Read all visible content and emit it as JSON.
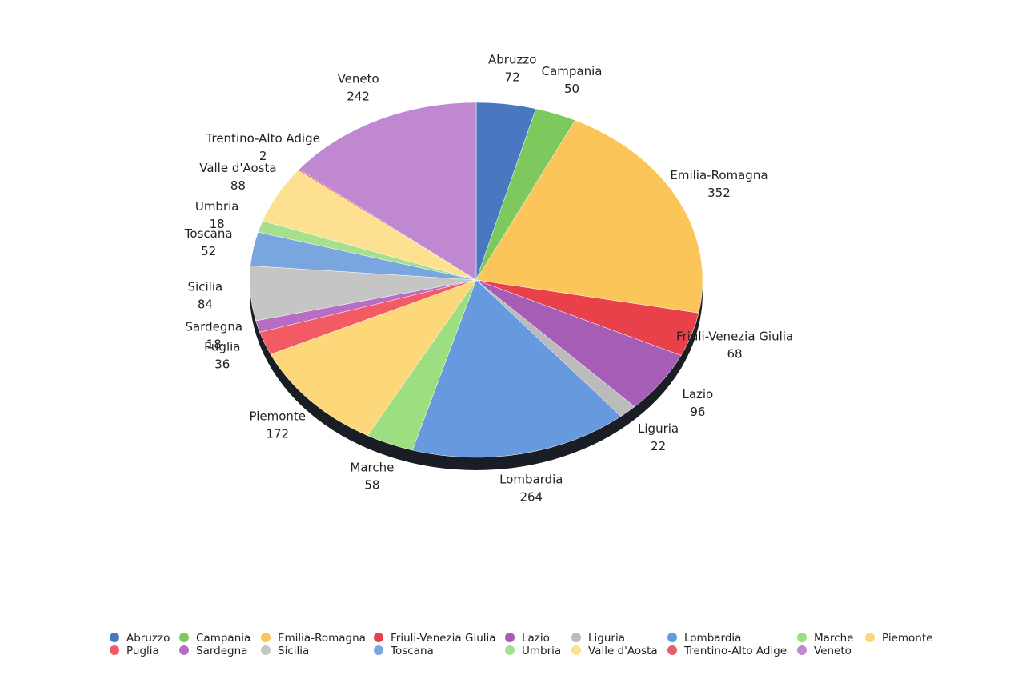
{
  "chart_data": {
    "type": "pie",
    "categories": [
      "Abruzzo",
      "Campania",
      "Emilia-Romagna",
      "Friuli-Venezia Giulia",
      "Lazio",
      "Liguria",
      "Lombardia",
      "Marche",
      "Piemonte",
      "Puglia",
      "Sardegna",
      "Sicilia",
      "Toscana",
      "Umbria",
      "Valle d'Aosta",
      "Trentino-Alto Adige",
      "Veneto"
    ],
    "values": [
      72,
      50,
      352,
      68,
      96,
      22,
      264,
      58,
      172,
      36,
      18,
      84,
      52,
      18,
      88,
      2,
      242
    ],
    "colors": [
      "#4a78c0",
      "#7dc95e",
      "#fcc55a",
      "#e8414a",
      "#a55db5",
      "#bbbbbb",
      "#6699dd",
      "#9ddf80",
      "#fdd87a",
      "#f25a64",
      "#b86cc4",
      "#c5c5c5",
      "#7aa6e0",
      "#a6e08c",
      "#fde090",
      "#e06070",
      "#c088d0"
    ],
    "legend": "bottom"
  }
}
